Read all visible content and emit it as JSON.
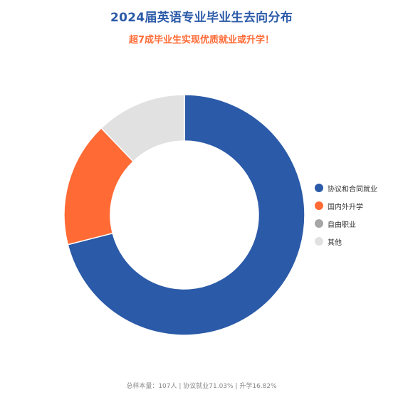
{
  "chart_data": {
    "type": "pie",
    "title": "2024届英语专业毕业生去向分布",
    "subtitle": "超7成毕业生实现优质就业或升学！",
    "categories": [
      "协议和合同就业",
      "国内外升学",
      "自由职业",
      "其他"
    ],
    "values": [
      71.03,
      16.82,
      0.0,
      12.15
    ],
    "colors": [
      "#2b5aa8",
      "#ff6a35",
      "#a6a6a6",
      "#e1e1e1"
    ],
    "donut": true,
    "legend_position": "right",
    "note": "总样本量：107人 | 协议就业71.03% | 升学16.82%"
  }
}
